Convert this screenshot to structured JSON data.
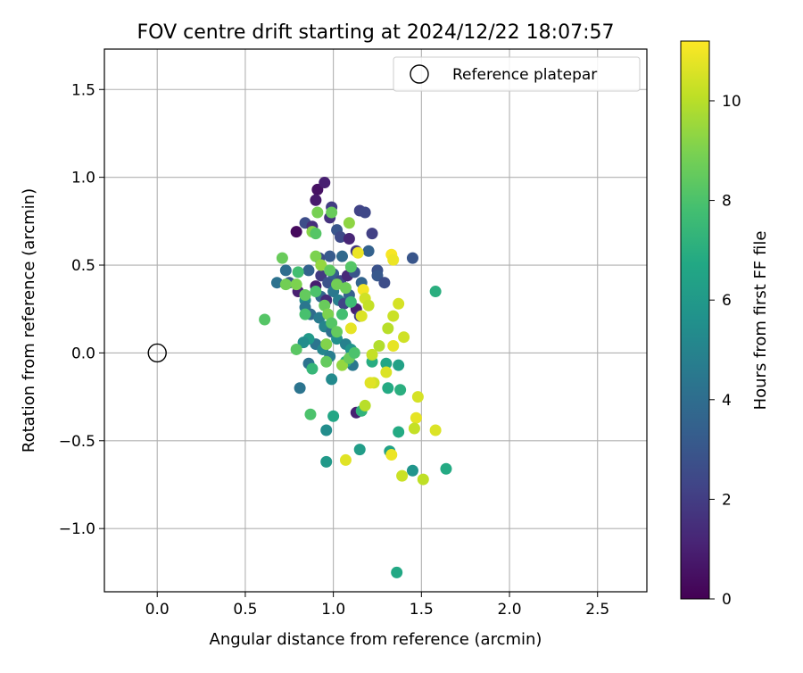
{
  "chart_data": {
    "type": "scatter",
    "title": "FOV centre drift starting at 2024/12/22 18:07:57",
    "xlabel": "Angular distance from reference (arcmin)",
    "ylabel": "Rotation from reference (arcmin)",
    "xlim": [
      -0.3,
      2.78
    ],
    "ylim": [
      -1.36,
      1.73
    ],
    "xticks": [
      0.0,
      0.5,
      1.0,
      1.5,
      2.0,
      2.5
    ],
    "xtick_labels": [
      "0.0",
      "0.5",
      "1.0",
      "1.5",
      "2.0",
      "2.5"
    ],
    "yticks": [
      -1.0,
      -0.5,
      0.0,
      0.5,
      1.0,
      1.5
    ],
    "ytick_labels": [
      "−1.0",
      "−0.5",
      "0.0",
      "0.5",
      "1.0",
      "1.5"
    ],
    "grid": true,
    "legend": {
      "position": "top-right",
      "entries": [
        {
          "label": "Reference platepar",
          "marker": "open-circle",
          "color": "#000000"
        }
      ]
    },
    "reference_point": {
      "x": 0.0,
      "y": 0.0
    },
    "colorbar": {
      "label": "Hours from first FF file",
      "colormap": "viridis",
      "range": [
        0,
        11.2
      ],
      "ticks": [
        0,
        2,
        4,
        6,
        8,
        10
      ],
      "tick_labels": [
        "0",
        "2",
        "4",
        "6",
        "8",
        "10"
      ]
    },
    "points": [
      {
        "x": 0.79,
        "y": 0.69,
        "c": 0.3
      },
      {
        "x": 0.91,
        "y": 0.93,
        "c": 0.5
      },
      {
        "x": 0.95,
        "y": 0.97,
        "c": 1.0
      },
      {
        "x": 0.9,
        "y": 0.87,
        "c": 0.8
      },
      {
        "x": 0.84,
        "y": 0.74,
        "c": 2.6
      },
      {
        "x": 0.88,
        "y": 0.72,
        "c": 1.5
      },
      {
        "x": 0.99,
        "y": 0.83,
        "c": 2.0
      },
      {
        "x": 0.98,
        "y": 0.77,
        "c": 1.6
      },
      {
        "x": 1.02,
        "y": 0.7,
        "c": 3.0
      },
      {
        "x": 1.04,
        "y": 0.66,
        "c": 2.5
      },
      {
        "x": 1.09,
        "y": 0.65,
        "c": 1.2
      },
      {
        "x": 1.15,
        "y": 0.81,
        "c": 2.2
      },
      {
        "x": 1.18,
        "y": 0.8,
        "c": 2.4
      },
      {
        "x": 1.22,
        "y": 0.68,
        "c": 2.1
      },
      {
        "x": 1.2,
        "y": 0.58,
        "c": 3.5
      },
      {
        "x": 1.13,
        "y": 0.58,
        "c": 1.8
      },
      {
        "x": 1.05,
        "y": 0.55,
        "c": 3.8
      },
      {
        "x": 0.98,
        "y": 0.55,
        "c": 3.2
      },
      {
        "x": 0.92,
        "y": 0.54,
        "c": 2.7
      },
      {
        "x": 0.86,
        "y": 0.47,
        "c": 3.5
      },
      {
        "x": 0.8,
        "y": 0.35,
        "c": 1.0
      },
      {
        "x": 0.75,
        "y": 0.4,
        "c": 3.0
      },
      {
        "x": 0.68,
        "y": 0.4,
        "c": 4.2
      },
      {
        "x": 0.73,
        "y": 0.47,
        "c": 4.0
      },
      {
        "x": 0.9,
        "y": 0.38,
        "c": 0.9
      },
      {
        "x": 0.93,
        "y": 0.44,
        "c": 1.9
      },
      {
        "x": 0.97,
        "y": 0.4,
        "c": 2.8
      },
      {
        "x": 1.0,
        "y": 0.45,
        "c": 3.3
      },
      {
        "x": 1.04,
        "y": 0.41,
        "c": 2.4
      },
      {
        "x": 1.08,
        "y": 0.44,
        "c": 1.3
      },
      {
        "x": 1.12,
        "y": 0.46,
        "c": 2.9
      },
      {
        "x": 1.16,
        "y": 0.4,
        "c": 3.6
      },
      {
        "x": 1.25,
        "y": 0.47,
        "c": 2.8
      },
      {
        "x": 1.25,
        "y": 0.44,
        "c": 3.1
      },
      {
        "x": 1.29,
        "y": 0.4,
        "c": 2.6
      },
      {
        "x": 1.45,
        "y": 0.54,
        "c": 3.0
      },
      {
        "x": 0.93,
        "y": 0.32,
        "c": 3.7
      },
      {
        "x": 0.96,
        "y": 0.3,
        "c": 1.4
      },
      {
        "x": 1.0,
        "y": 0.35,
        "c": 4.5
      },
      {
        "x": 1.03,
        "y": 0.3,
        "c": 4.8
      },
      {
        "x": 1.06,
        "y": 0.28,
        "c": 2.3
      },
      {
        "x": 1.09,
        "y": 0.33,
        "c": 3.4
      },
      {
        "x": 1.13,
        "y": 0.25,
        "c": 1.0
      },
      {
        "x": 1.15,
        "y": 0.21,
        "c": 2.0
      },
      {
        "x": 0.84,
        "y": 0.3,
        "c": 5.2
      },
      {
        "x": 0.84,
        "y": 0.26,
        "c": 4.4
      },
      {
        "x": 0.87,
        "y": 0.22,
        "c": 3.9
      },
      {
        "x": 0.92,
        "y": 0.2,
        "c": 4.6
      },
      {
        "x": 0.95,
        "y": 0.15,
        "c": 5.0
      },
      {
        "x": 0.99,
        "y": 0.12,
        "c": 4.1
      },
      {
        "x": 1.02,
        "y": 0.08,
        "c": 5.5
      },
      {
        "x": 1.07,
        "y": 0.05,
        "c": 4.9
      },
      {
        "x": 1.1,
        "y": 0.02,
        "c": 5.8
      },
      {
        "x": 0.9,
        "y": 0.05,
        "c": 4.3
      },
      {
        "x": 0.86,
        "y": 0.08,
        "c": 6.0
      },
      {
        "x": 0.83,
        "y": 0.06,
        "c": 5.4
      },
      {
        "x": 0.94,
        "y": 0.02,
        "c": 5.1
      },
      {
        "x": 0.98,
        "y": -0.02,
        "c": 4.7
      },
      {
        "x": 1.11,
        "y": -0.07,
        "c": 4.5
      },
      {
        "x": 0.86,
        "y": -0.06,
        "c": 4.2
      },
      {
        "x": 0.81,
        "y": -0.2,
        "c": 4.3
      },
      {
        "x": 0.99,
        "y": -0.15,
        "c": 5.3
      },
      {
        "x": 1.07,
        "y": -0.05,
        "c": 7.0
      },
      {
        "x": 1.13,
        "y": -0.34,
        "c": 1.0
      },
      {
        "x": 1.16,
        "y": -0.33,
        "c": 7.2
      },
      {
        "x": 1.0,
        "y": -0.36,
        "c": 6.6
      },
      {
        "x": 0.96,
        "y": -0.44,
        "c": 5.4
      },
      {
        "x": 0.96,
        "y": -0.62,
        "c": 6.0
      },
      {
        "x": 1.15,
        "y": -0.55,
        "c": 6.2
      },
      {
        "x": 1.32,
        "y": -0.56,
        "c": 6.4
      },
      {
        "x": 1.45,
        "y": -0.67,
        "c": 5.8
      },
      {
        "x": 1.37,
        "y": -0.45,
        "c": 6.8
      },
      {
        "x": 1.3,
        "y": -0.06,
        "c": 6.6
      },
      {
        "x": 1.31,
        "y": -0.2,
        "c": 6.8
      },
      {
        "x": 1.37,
        "y": -0.07,
        "c": 6.4
      },
      {
        "x": 1.38,
        "y": -0.21,
        "c": 7.0
      },
      {
        "x": 1.22,
        "y": -0.05,
        "c": 6.9
      },
      {
        "x": 1.58,
        "y": 0.35,
        "c": 7.0
      },
      {
        "x": 1.64,
        "y": -0.66,
        "c": 6.8
      },
      {
        "x": 1.36,
        "y": -1.25,
        "c": 6.7
      },
      {
        "x": 0.88,
        "y": -0.09,
        "c": 7.4
      },
      {
        "x": 0.87,
        "y": -0.35,
        "c": 8.0
      },
      {
        "x": 0.79,
        "y": 0.02,
        "c": 8.3
      },
      {
        "x": 0.61,
        "y": 0.19,
        "c": 8.2
      },
      {
        "x": 0.71,
        "y": 0.54,
        "c": 8.6
      },
      {
        "x": 0.73,
        "y": 0.39,
        "c": 8.8
      },
      {
        "x": 0.79,
        "y": 0.39,
        "c": 9.0
      },
      {
        "x": 0.8,
        "y": 0.46,
        "c": 7.8
      },
      {
        "x": 0.84,
        "y": 0.33,
        "c": 8.5
      },
      {
        "x": 0.84,
        "y": 0.22,
        "c": 7.9
      },
      {
        "x": 0.88,
        "y": 0.69,
        "c": 9.2
      },
      {
        "x": 0.91,
        "y": 0.8,
        "c": 8.9
      },
      {
        "x": 0.9,
        "y": 0.68,
        "c": 8.2
      },
      {
        "x": 0.99,
        "y": 0.8,
        "c": 8.6
      },
      {
        "x": 1.09,
        "y": 0.74,
        "c": 9.3
      },
      {
        "x": 0.9,
        "y": 0.55,
        "c": 9.0
      },
      {
        "x": 0.93,
        "y": 0.5,
        "c": 9.4
      },
      {
        "x": 0.98,
        "y": 0.47,
        "c": 8.4
      },
      {
        "x": 1.02,
        "y": 0.39,
        "c": 8.8
      },
      {
        "x": 1.1,
        "y": 0.49,
        "c": 8.2
      },
      {
        "x": 1.07,
        "y": 0.37,
        "c": 8.7
      },
      {
        "x": 1.1,
        "y": 0.29,
        "c": 7.6
      },
      {
        "x": 0.9,
        "y": 0.35,
        "c": 8.0
      },
      {
        "x": 0.95,
        "y": 0.27,
        "c": 8.6
      },
      {
        "x": 0.97,
        "y": 0.22,
        "c": 9.0
      },
      {
        "x": 0.99,
        "y": 0.17,
        "c": 8.2
      },
      {
        "x": 1.02,
        "y": 0.12,
        "c": 8.5
      },
      {
        "x": 1.05,
        "y": 0.22,
        "c": 7.8
      },
      {
        "x": 0.96,
        "y": 0.05,
        "c": 9.1
      },
      {
        "x": 0.96,
        "y": -0.05,
        "c": 8.5
      },
      {
        "x": 1.05,
        "y": -0.07,
        "c": 9.4
      },
      {
        "x": 1.09,
        "y": -0.03,
        "c": 8.6
      },
      {
        "x": 1.12,
        "y": 0.0,
        "c": 8.0
      },
      {
        "x": 1.1,
        "y": 0.14,
        "c": 10.8
      },
      {
        "x": 1.14,
        "y": 0.57,
        "c": 10.9
      },
      {
        "x": 1.17,
        "y": 0.36,
        "c": 11.0
      },
      {
        "x": 1.16,
        "y": 0.21,
        "c": 10.6
      },
      {
        "x": 1.18,
        "y": 0.31,
        "c": 10.4
      },
      {
        "x": 1.2,
        "y": 0.27,
        "c": 10.2
      },
      {
        "x": 1.33,
        "y": 0.56,
        "c": 11.1
      },
      {
        "x": 1.34,
        "y": 0.53,
        "c": 10.9
      },
      {
        "x": 1.37,
        "y": 0.28,
        "c": 10.5
      },
      {
        "x": 1.34,
        "y": 0.21,
        "c": 10.3
      },
      {
        "x": 1.31,
        "y": 0.14,
        "c": 10.0
      },
      {
        "x": 1.4,
        "y": 0.09,
        "c": 10.4
      },
      {
        "x": 1.34,
        "y": 0.04,
        "c": 10.8
      },
      {
        "x": 1.26,
        "y": 0.04,
        "c": 9.9
      },
      {
        "x": 1.22,
        "y": -0.01,
        "c": 10.2
      },
      {
        "x": 1.3,
        "y": -0.11,
        "c": 10.6
      },
      {
        "x": 1.23,
        "y": -0.17,
        "c": 10.4
      },
      {
        "x": 1.21,
        "y": -0.17,
        "c": 10.7
      },
      {
        "x": 1.18,
        "y": -0.3,
        "c": 10.0
      },
      {
        "x": 1.48,
        "y": -0.25,
        "c": 10.5
      },
      {
        "x": 1.47,
        "y": -0.37,
        "c": 10.8
      },
      {
        "x": 1.46,
        "y": -0.43,
        "c": 10.2
      },
      {
        "x": 1.58,
        "y": -0.44,
        "c": 10.6
      },
      {
        "x": 1.33,
        "y": -0.58,
        "c": 10.9
      },
      {
        "x": 1.39,
        "y": -0.7,
        "c": 10.3
      },
      {
        "x": 1.51,
        "y": -0.72,
        "c": 10.1
      },
      {
        "x": 1.07,
        "y": -0.61,
        "c": 10.7
      }
    ]
  }
}
